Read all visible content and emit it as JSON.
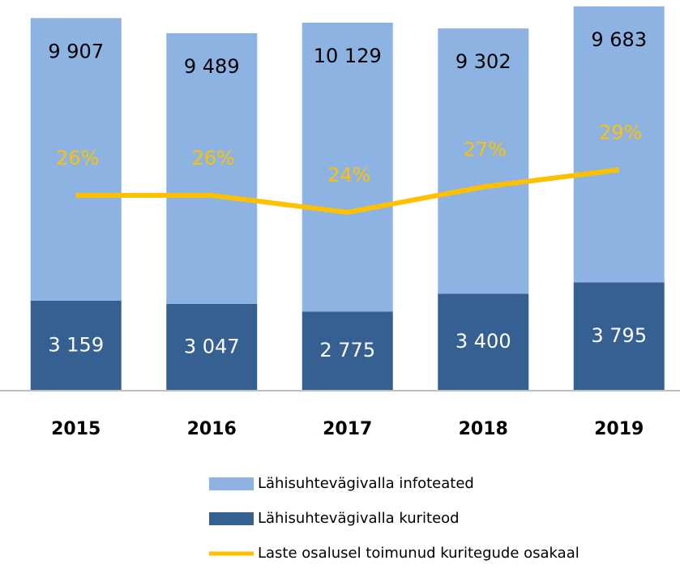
{
  "chart_data": {
    "type": "bar",
    "categories": [
      "2015",
      "2016",
      "2017",
      "2018",
      "2019"
    ],
    "series": [
      {
        "name": "Lähisuhtevägivalla kuriteod",
        "color": "#376092",
        "values": [
          3159,
          3047,
          2775,
          3400,
          3795
        ],
        "value_labels": [
          "3 159",
          "3 047",
          "2 775",
          "3 400",
          "3 795"
        ]
      },
      {
        "name": "Lähisuhtevägivalla infoteated",
        "color": "#8db3e2",
        "values": [
          9907,
          9489,
          10129,
          9302,
          9683
        ],
        "value_labels": [
          "9 907",
          "9 489",
          "10 129",
          "9 302",
          "9 683"
        ]
      },
      {
        "name": "Laste osalusel toimunud kuritegude osakaal",
        "color": "#ffc000",
        "type": "line",
        "axis": "y2",
        "values": [
          26,
          26,
          24,
          27,
          29
        ],
        "value_labels": [
          "26%",
          "26%",
          "24%",
          "27%",
          "29%"
        ]
      }
    ],
    "stacked": true,
    "ylim": [
      0,
      13700
    ],
    "y2lim": [
      3,
      49
    ]
  }
}
